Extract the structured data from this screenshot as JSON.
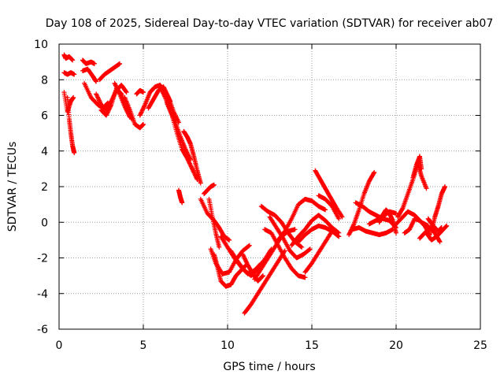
{
  "chart_data": {
    "type": "scatter",
    "title": "Day 108 of 2025, Sidereal Day-to-day VTEC variation (SDTVAR) for receiver ab07",
    "xlabel": "GPS time / hours",
    "ylabel": "SDTVAR / TECUs",
    "xlim": [
      0,
      25
    ],
    "ylim": [
      -6,
      10
    ],
    "xticks": [
      0,
      5,
      10,
      15,
      20,
      25
    ],
    "yticks": [
      -6,
      -4,
      -2,
      0,
      2,
      4,
      6,
      8,
      10
    ],
    "grid": true,
    "marker": "+",
    "color": "#ff0000",
    "tracks": [
      {
        "x": [
          0.3,
          0.4,
          0.6,
          0.8
        ],
        "y": [
          9.4,
          9.2,
          9.3,
          9.1
        ]
      },
      {
        "x": [
          0.3,
          0.5,
          0.7,
          0.9
        ],
        "y": [
          8.4,
          8.3,
          8.4,
          8.3
        ]
      },
      {
        "x": [
          0.3,
          0.5,
          0.7,
          0.85
        ],
        "y": [
          7.3,
          6.2,
          6.8,
          7.0
        ]
      },
      {
        "x": [
          0.5,
          0.6,
          0.7,
          0.8,
          0.9
        ],
        "y": [
          7.0,
          5.8,
          5.0,
          4.3,
          3.9
        ]
      },
      {
        "x": [
          1.4,
          1.6,
          1.9,
          2.1
        ],
        "y": [
          9.1,
          8.9,
          9.0,
          8.9
        ]
      },
      {
        "x": [
          1.4,
          1.7,
          2.0,
          2.2
        ],
        "y": [
          8.5,
          8.6,
          8.2,
          7.9
        ]
      },
      {
        "x": [
          2.4,
          2.7,
          3.0,
          3.3,
          3.6
        ],
        "y": [
          8.0,
          8.3,
          8.5,
          8.7,
          8.9
        ]
      },
      {
        "x": [
          1.5,
          1.9,
          2.3,
          2.6,
          2.9
        ],
        "y": [
          7.8,
          7.0,
          6.6,
          6.4,
          6.7
        ]
      },
      {
        "x": [
          2.2,
          2.5,
          2.8,
          3.1,
          3.4,
          3.7,
          4.0
        ],
        "y": [
          7.2,
          6.6,
          6.3,
          6.8,
          7.4,
          7.7,
          7.3
        ]
      },
      {
        "x": [
          2.5,
          2.8,
          3.1,
          3.4,
          3.7,
          4.0,
          4.3
        ],
        "y": [
          6.3,
          6.0,
          6.6,
          7.5,
          7.2,
          6.4,
          5.8
        ]
      },
      {
        "x": [
          3.3,
          3.6,
          3.9,
          4.2
        ],
        "y": [
          7.8,
          7.2,
          6.5,
          5.9
        ]
      },
      {
        "x": [
          3.9,
          4.2,
          4.5,
          4.8,
          5.0
        ],
        "y": [
          7.0,
          6.3,
          5.5,
          5.3,
          5.5
        ]
      },
      {
        "x": [
          4.6,
          4.8,
          5.0
        ],
        "y": [
          7.2,
          7.4,
          7.3
        ]
      },
      {
        "x": [
          4.8,
          5.1,
          5.4,
          5.7,
          6.0,
          6.3,
          6.6
        ],
        "y": [
          6.0,
          6.6,
          7.3,
          7.6,
          7.7,
          7.3,
          6.8
        ]
      },
      {
        "x": [
          5.3,
          5.6,
          5.9,
          6.2,
          6.5,
          6.8,
          7.1
        ],
        "y": [
          6.4,
          6.9,
          7.4,
          7.6,
          7.0,
          6.2,
          5.6
        ]
      },
      {
        "x": [
          6.0,
          6.3,
          6.6,
          6.9,
          7.2,
          7.5,
          7.8
        ],
        "y": [
          7.6,
          7.0,
          6.3,
          5.6,
          4.8,
          4.1,
          3.5
        ]
      },
      {
        "x": [
          6.4,
          6.7,
          7.0,
          7.3,
          7.6,
          7.9,
          8.2
        ],
        "y": [
          6.7,
          6.0,
          5.0,
          4.1,
          3.6,
          3.0,
          2.4
        ]
      },
      {
        "x": [
          7.1,
          7.2,
          7.3
        ],
        "y": [
          1.8,
          1.4,
          1.1
        ]
      },
      {
        "x": [
          7.4,
          7.6,
          7.8,
          8.0,
          8.2,
          8.4
        ],
        "y": [
          5.1,
          4.8,
          4.4,
          3.7,
          2.9,
          2.2
        ]
      },
      {
        "x": [
          8.4,
          8.8,
          9.2,
          9.5,
          9.8,
          10.1
        ],
        "y": [
          1.3,
          0.5,
          0.1,
          -0.3,
          -0.8,
          -1.0
        ]
      },
      {
        "x": [
          8.6,
          8.8,
          9.0,
          9.2
        ],
        "y": [
          1.6,
          1.8,
          2.0,
          2.1
        ]
      },
      {
        "x": [
          8.9,
          9.1,
          9.3,
          9.5
        ],
        "y": [
          1.3,
          0.3,
          -0.6,
          -1.4
        ]
      },
      {
        "x": [
          9.0,
          9.3,
          9.7,
          10.1,
          10.5,
          10.9,
          11.3
        ],
        "y": [
          -1.5,
          -2.3,
          -2.9,
          -2.8,
          -2.1,
          -1.6,
          -1.3
        ]
      },
      {
        "x": [
          9.2,
          9.4,
          9.6,
          9.9,
          10.2,
          10.5,
          10.8,
          11.1
        ],
        "y": [
          -1.8,
          -2.5,
          -3.3,
          -3.6,
          -3.5,
          -3.0,
          -2.7,
          -2.4
        ]
      },
      {
        "x": [
          9.6,
          10.0,
          10.4,
          10.8,
          11.2,
          11.6,
          12.0
        ],
        "y": [
          -0.8,
          -1.4,
          -2.0,
          -2.5,
          -2.9,
          -2.7,
          -2.3
        ]
      },
      {
        "x": [
          10.2,
          10.6,
          11.0,
          11.4,
          11.8,
          12.2,
          12.6
        ],
        "y": [
          -1.6,
          -2.2,
          -2.7,
          -3.0,
          -2.6,
          -2.1,
          -1.5
        ]
      },
      {
        "x": [
          10.9,
          11.2,
          11.5,
          11.8,
          12.1
        ],
        "y": [
          -1.8,
          -2.4,
          -2.9,
          -3.3,
          -3.0
        ]
      },
      {
        "x": [
          11.0,
          11.4,
          11.8,
          12.2,
          12.6,
          13.0,
          13.4
        ],
        "y": [
          -5.1,
          -4.6,
          -4.0,
          -3.4,
          -2.8,
          -2.2,
          -1.6
        ]
      },
      {
        "x": [
          11.6,
          12.0,
          12.4,
          12.8,
          13.2,
          13.6,
          14.0
        ],
        "y": [
          -3.2,
          -2.6,
          -2.0,
          -1.4,
          -0.8,
          -0.5,
          -0.4
        ]
      },
      {
        "x": [
          12.0,
          12.4,
          12.8,
          13.2,
          13.6,
          14.0,
          14.4
        ],
        "y": [
          0.9,
          0.6,
          0.4,
          0.0,
          -0.6,
          -1.1,
          -1.4
        ]
      },
      {
        "x": [
          12.2,
          12.6,
          13.0,
          13.4,
          13.8,
          14.2,
          14.6
        ],
        "y": [
          -0.4,
          -0.6,
          -1.3,
          -2.0,
          -2.6,
          -3.0,
          -3.1
        ]
      },
      {
        "x": [
          12.5,
          12.9,
          13.3,
          13.7,
          14.1,
          14.5,
          14.9
        ],
        "y": [
          0.3,
          -0.3,
          -0.9,
          -1.6,
          -2.0,
          -1.8,
          -1.5
        ]
      },
      {
        "x": [
          13.0,
          13.4,
          13.8,
          14.2,
          14.6,
          15.0,
          15.4,
          15.8
        ],
        "y": [
          -1.0,
          -0.5,
          0.2,
          1.0,
          1.3,
          1.2,
          0.9,
          0.7
        ]
      },
      {
        "x": [
          13.8,
          14.2,
          14.6,
          15.0,
          15.4,
          15.8,
          16.2,
          16.6
        ],
        "y": [
          -1.3,
          -0.8,
          -0.4,
          0.1,
          0.4,
          0.1,
          -0.3,
          -0.6
        ]
      },
      {
        "x": [
          14.2,
          14.6,
          15.0,
          15.4,
          15.8,
          16.2,
          16.6
        ],
        "y": [
          -1.1,
          -0.7,
          -0.4,
          -0.2,
          -0.3,
          -0.5,
          -0.8
        ]
      },
      {
        "x": [
          14.6,
          15.0,
          15.4,
          15.8,
          16.2
        ],
        "y": [
          -2.8,
          -2.3,
          -1.7,
          -1.1,
          -0.5
        ]
      },
      {
        "x": [
          15.2,
          15.5,
          15.8,
          16.1,
          16.4,
          16.8
        ],
        "y": [
          2.9,
          2.4,
          1.9,
          1.4,
          0.9,
          0.3
        ]
      },
      {
        "x": [
          15.4,
          15.8,
          16.2,
          16.6
        ],
        "y": [
          1.5,
          1.3,
          0.9,
          0.2
        ]
      },
      {
        "x": [
          17.2,
          17.5,
          17.8,
          18.1,
          18.4,
          18.7
        ],
        "y": [
          -0.7,
          -0.1,
          0.7,
          1.6,
          2.3,
          2.8
        ]
      },
      {
        "x": [
          17.4,
          17.8,
          18.2,
          18.6,
          19.0,
          19.4,
          19.8
        ],
        "y": [
          -0.4,
          -0.3,
          -0.5,
          -0.6,
          -0.7,
          -0.6,
          -0.4
        ]
      },
      {
        "x": [
          17.6,
          18.0,
          18.4,
          18.8,
          19.2,
          19.6,
          20.0
        ],
        "y": [
          1.1,
          0.9,
          0.6,
          0.4,
          0.2,
          0.1,
          -0.3
        ]
      },
      {
        "x": [
          18.4,
          18.8,
          19.2,
          19.6,
          20.0
        ],
        "y": [
          -0.1,
          0.1,
          0.3,
          0.6,
          0.5
        ]
      },
      {
        "x": [
          19.0,
          19.2,
          19.4,
          19.6,
          19.8,
          20.0
        ],
        "y": [
          0.0,
          0.4,
          0.7,
          0.5,
          0.1,
          -0.6
        ]
      },
      {
        "x": [
          19.9,
          20.3,
          20.7,
          21.1,
          21.5,
          21.9
        ],
        "y": [
          -0.2,
          0.2,
          0.6,
          0.4,
          0.0,
          -0.2
        ]
      },
      {
        "x": [
          20.1,
          20.4,
          20.7,
          21.0,
          21.3,
          21.5,
          21.8
        ],
        "y": [
          0.3,
          0.8,
          1.6,
          2.4,
          3.3,
          2.6,
          1.9
        ]
      },
      {
        "x": [
          20.5,
          20.8,
          21.1,
          21.4,
          21.7,
          22.0
        ],
        "y": [
          -0.6,
          -0.4,
          0.2,
          0.1,
          -0.2,
          -0.7
        ]
      },
      {
        "x": [
          21.0,
          21.2,
          21.4,
          21.5
        ],
        "y": [
          2.5,
          3.2,
          3.7,
          3.0
        ]
      },
      {
        "x": [
          21.8,
          22.1,
          22.4,
          22.7,
          23.0
        ],
        "y": [
          -0.6,
          -1.0,
          -0.8,
          -0.5,
          -0.2
        ]
      },
      {
        "x": [
          21.9,
          22.2,
          22.5,
          22.7
        ],
        "y": [
          0.2,
          -0.2,
          -0.5,
          -0.3
        ]
      },
      {
        "x": [
          22.1,
          22.3,
          22.5,
          22.7,
          22.9
        ],
        "y": [
          -0.5,
          0.3,
          0.9,
          1.6,
          2.0
        ]
      },
      {
        "x": [
          21.4,
          21.7,
          22.0,
          22.3,
          22.6
        ],
        "y": [
          -0.9,
          -0.6,
          -0.3,
          -0.6,
          -1.1
        ]
      }
    ]
  }
}
